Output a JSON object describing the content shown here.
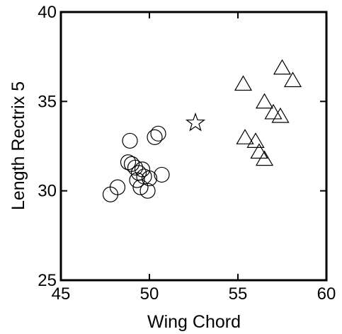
{
  "chart_data": {
    "type": "scatter",
    "title": "",
    "xlabel": "Wing Chord",
    "ylabel": "Length Rectrix 5",
    "xlim": [
      45,
      60
    ],
    "ylim": [
      25,
      40
    ],
    "xticks": [
      45,
      50,
      55,
      60
    ],
    "yticks": [
      25,
      30,
      35,
      40
    ],
    "grid": false,
    "legend": "none",
    "series": [
      {
        "marker": "circle",
        "color": "#000000",
        "points": [
          [
            47.8,
            29.8
          ],
          [
            48.2,
            30.2
          ],
          [
            48.8,
            31.6
          ],
          [
            48.9,
            32.8
          ],
          [
            49.0,
            31.5
          ],
          [
            49.2,
            31.3
          ],
          [
            49.4,
            31.0
          ],
          [
            49.6,
            31.2
          ],
          [
            49.3,
            30.6
          ],
          [
            49.5,
            30.2
          ],
          [
            49.7,
            30.8
          ],
          [
            49.9,
            30.0
          ],
          [
            50.0,
            30.7
          ],
          [
            50.3,
            33.0
          ],
          [
            50.5,
            33.2
          ],
          [
            50.7,
            30.9
          ]
        ]
      },
      {
        "marker": "triangle",
        "color": "#000000",
        "points": [
          [
            55.3,
            36.0
          ],
          [
            55.4,
            33.0
          ],
          [
            56.0,
            32.8
          ],
          [
            56.2,
            32.2
          ],
          [
            56.5,
            35.0
          ],
          [
            56.5,
            31.8
          ],
          [
            57.0,
            34.4
          ],
          [
            57.4,
            34.2
          ],
          [
            57.5,
            36.9
          ],
          [
            58.1,
            36.2
          ]
        ]
      },
      {
        "marker": "star",
        "color": "#000000",
        "points": [
          [
            52.6,
            33.8
          ]
        ]
      }
    ]
  }
}
